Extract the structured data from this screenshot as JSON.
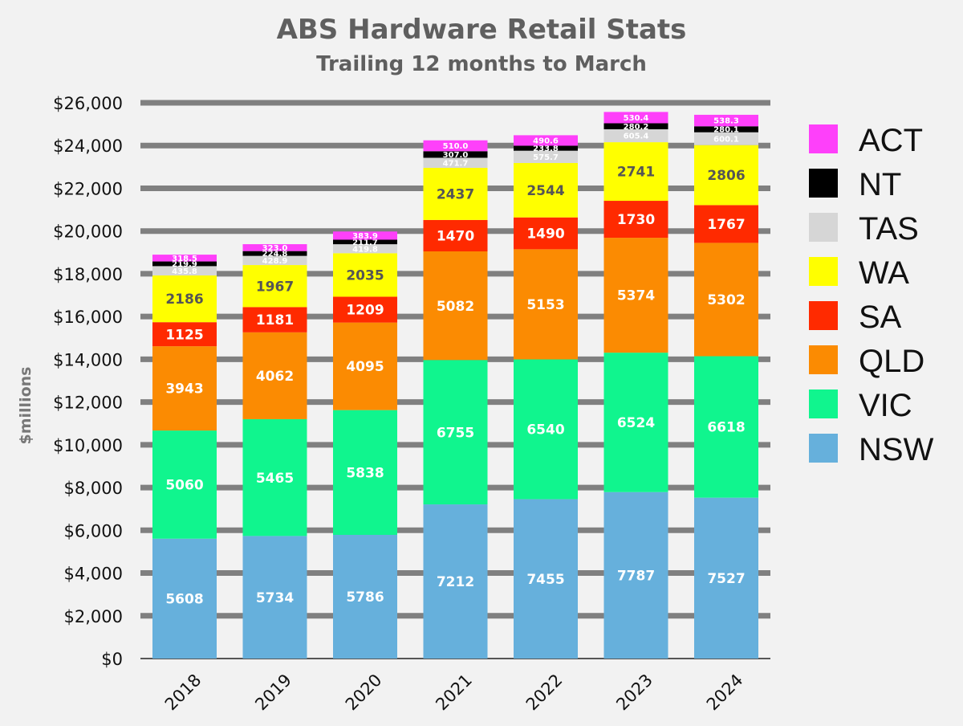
{
  "chart_data": {
    "type": "bar",
    "stacked": true,
    "title": "ABS Hardware Retail Stats",
    "subtitle": "Trailing 12 months to March",
    "xlabel": "",
    "ylabel": "$millions",
    "ylim": [
      0,
      26000
    ],
    "yticks": [
      "$0",
      "$2,000",
      "$4,000",
      "$6,000",
      "$8,000",
      "$10,000",
      "$12,000",
      "$14,000",
      "$16,000",
      "$18,000",
      "$20,000",
      "$22,000",
      "$24,000",
      "$26,000"
    ],
    "ytick_values": [
      0,
      2000,
      4000,
      6000,
      8000,
      10000,
      12000,
      14000,
      16000,
      18000,
      20000,
      22000,
      24000,
      26000
    ],
    "grid": true,
    "legend_position": "right",
    "categories": [
      "2018",
      "2019",
      "2020",
      "2021",
      "2022",
      "2023",
      "2024"
    ],
    "series": [
      {
        "name": "NSW",
        "color": "#66b0dc",
        "label_color": "#ffffff",
        "values": [
          5608,
          5734,
          5786,
          7212,
          7455,
          7787,
          7527
        ]
      },
      {
        "name": "VIC",
        "color": "#10f58e",
        "label_color": "#ffffff",
        "values": [
          5060,
          5465,
          5838,
          6755,
          6540,
          6524,
          6618
        ]
      },
      {
        "name": "QLD",
        "color": "#fb8b02",
        "label_color": "#ffffff",
        "values": [
          3943,
          4062,
          4095,
          5082,
          5153,
          5374,
          5302
        ]
      },
      {
        "name": "SA",
        "color": "#ff2a00",
        "label_color": "#ffffff",
        "values": [
          1125,
          1181,
          1209,
          1470,
          1490,
          1730,
          1767
        ]
      },
      {
        "name": "WA",
        "color": "#ffff00",
        "label_color": "#555555",
        "values": [
          2186,
          1967,
          2035,
          2437,
          2544,
          2741,
          2806
        ]
      },
      {
        "name": "TAS",
        "color": "#d6d6d6",
        "label_color": "#ffffff",
        "values": [
          435.8,
          428.9,
          419.8,
          471.7,
          575.7,
          605.4,
          600.1
        ],
        "labels": [
          "435.8",
          "428.9",
          "419.8",
          "471.7",
          "575.7",
          "605.4",
          "600.1"
        ]
      },
      {
        "name": "NT",
        "color": "#000000",
        "label_color": "#ffffff",
        "values": [
          219.9,
          224.8,
          211.7,
          307.0,
          233.8,
          280.2,
          280.1
        ],
        "labels": [
          "219.9",
          "224.8",
          "211.7",
          "307.0",
          "233.8",
          "280.2",
          "280.1"
        ]
      },
      {
        "name": "ACT",
        "color": "#fe40fa",
        "label_color": "#ffffff",
        "values": [
          318.5,
          323.0,
          383.9,
          510.0,
          490.6,
          530.4,
          538.3
        ],
        "labels": [
          "318.5",
          "323.0",
          "383.9",
          "510.0",
          "490.6",
          "530.4",
          "538.3"
        ]
      }
    ],
    "legend_order": [
      "ACT",
      "NT",
      "TAS",
      "WA",
      "SA",
      "QLD",
      "VIC",
      "NSW"
    ]
  }
}
